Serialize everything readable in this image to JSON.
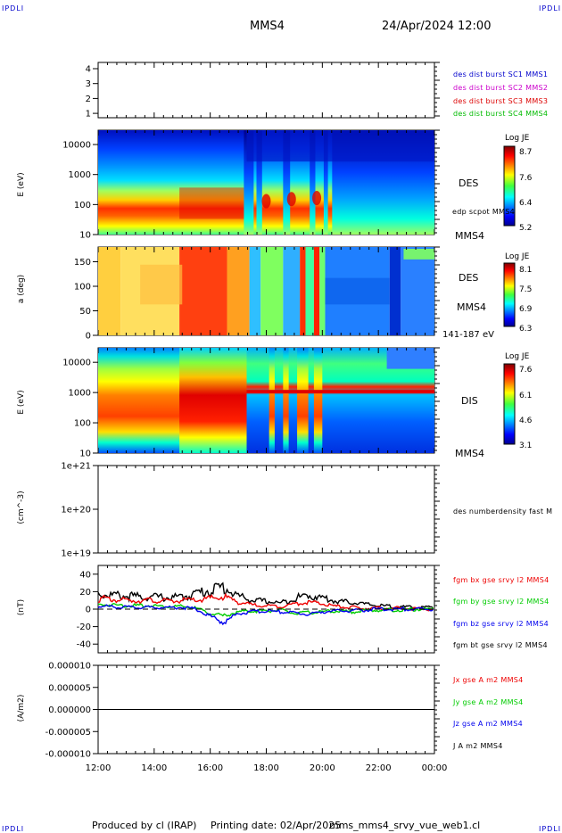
{
  "header": {
    "corner_label": "IPDLI",
    "title": "MMS4",
    "datetime": "24/Apr/2024 12:00"
  },
  "footer": {
    "produced_by": "Produced by cl (IRAP)",
    "printing_date": "Printing date: 02/Apr/2025",
    "filename": "mms_mms4_srvy_vue_web1.cl"
  },
  "time_axis": {
    "ticks": [
      "12:00",
      "14:00",
      "16:00",
      "18:00",
      "20:00",
      "22:00",
      "00:00"
    ]
  },
  "colors": {
    "mms1": "#0000cc",
    "mms2": "#cc00cc",
    "mms3": "#dd0000",
    "mms4": "#00bb00",
    "bx": "#ee0000",
    "by": "#00cc00",
    "bz": "#0000ee",
    "bt": "#000000"
  },
  "panels": {
    "burst": {
      "yticks": [
        "4",
        "3",
        "2",
        "1"
      ],
      "legend": [
        "des dist burst SC1 MMS1",
        "des dist burst SC2 MMS2",
        "des dist burst SC3 MMS3",
        "des dist burst SC4 MMS4"
      ]
    },
    "des_energy": {
      "ylabel": "E (eV)",
      "yticks": [
        "10000",
        "1000",
        "100",
        "10"
      ],
      "species": "DES",
      "overlay": "edp scpot MMS4",
      "sc": "MMS4",
      "cbar_title": "Log JE",
      "cbar_ticks": [
        "8.7",
        "7.6",
        "6.4",
        "5.2"
      ]
    },
    "pitch": {
      "ylabel": "a (deg)",
      "yticks": [
        "150",
        "100",
        "50",
        "0"
      ],
      "species": "DES",
      "sc": "MMS4",
      "range": "141-187 eV",
      "cbar_title": "Log JE",
      "cbar_ticks": [
        "8.1",
        "7.5",
        "6.9",
        "6.3"
      ]
    },
    "dis_energy": {
      "ylabel": "E (eV)",
      "yticks": [
        "10000",
        "1000",
        "100",
        "10"
      ],
      "species": "DIS",
      "sc": "MMS4",
      "cbar_title": "Log JE",
      "cbar_ticks": [
        "7.6",
        "6.1",
        "4.6",
        "3.1"
      ]
    },
    "density": {
      "ylabel": "(cm^-3)",
      "yticks": [
        "1e+21",
        "1e+20",
        "1e+19"
      ],
      "legend": "des numberdensity fast M"
    },
    "field": {
      "ylabel": "(nT)",
      "yticks": [
        "40",
        "20",
        "0",
        "-20",
        "-40"
      ],
      "legend": [
        "fgm bx gse srvy l2 MMS4",
        "fgm by gse srvy l2 MMS4",
        "fgm bz gse srvy l2 MMS4",
        "fgm bt gse srvy l2 MMS4"
      ]
    },
    "current": {
      "ylabel": "(A/m2)",
      "yticks": [
        "0.000010",
        "0.000005",
        "0.000000",
        "-0.000005",
        "-0.000010"
      ],
      "legend": [
        "Jx gse A m2 MMS4",
        "Jy gse A m2 MMS4",
        "Jz gse A m2 MMS4",
        "J A m2 MMS4"
      ]
    }
  },
  "chart_data": [
    {
      "type": "line",
      "name": "burst",
      "x_range": [
        "12:00",
        "00:00"
      ],
      "ylim": [
        0.5,
        4.5
      ],
      "series": []
    },
    {
      "type": "heatmap",
      "name": "des_energy_spectrogram",
      "yscale": "log",
      "ylim": [
        10,
        30000
      ],
      "clim": [
        5.2,
        8.7
      ]
    },
    {
      "type": "heatmap",
      "name": "des_pitch_angle",
      "ylim": [
        0,
        180
      ],
      "clim": [
        6.3,
        8.1
      ]
    },
    {
      "type": "heatmap",
      "name": "dis_energy_spectrogram",
      "yscale": "log",
      "ylim": [
        10,
        30000
      ],
      "clim": [
        3.1,
        7.6
      ]
    },
    {
      "type": "line",
      "name": "density",
      "yscale": "log",
      "ylim": [
        1e+19,
        1e+21
      ],
      "series": []
    },
    {
      "type": "line",
      "name": "magnetic_field",
      "ylim": [
        -50,
        50
      ],
      "x_hours": [
        0,
        0.5,
        1,
        1.5,
        2,
        2.5,
        3,
        3.5,
        4,
        4.5,
        5,
        5.5,
        6,
        6.5,
        7,
        7.5,
        8,
        8.5,
        9,
        9.5,
        10,
        10.5,
        11,
        11.5,
        12
      ],
      "series": [
        {
          "name": "bt",
          "values": [
            18,
            16,
            15,
            14,
            14,
            13,
            14,
            18,
            22,
            25,
            15,
            10,
            9,
            7,
            12,
            16,
            13,
            9,
            8,
            6,
            4,
            3,
            2,
            2,
            2
          ]
        },
        {
          "name": "bx",
          "values": [
            12,
            11,
            10,
            10,
            10,
            9,
            10,
            10,
            12,
            14,
            8,
            5,
            4,
            3,
            6,
            8,
            6,
            3,
            2,
            1,
            1,
            1,
            1,
            0,
            0
          ]
        },
        {
          "name": "by",
          "values": [
            5,
            5,
            4,
            4,
            4,
            3,
            3,
            1,
            -5,
            -8,
            -3,
            -2,
            -2,
            -1,
            -5,
            -4,
            -3,
            -2,
            -3,
            -2,
            -1,
            -1,
            -1,
            0,
            0
          ]
        },
        {
          "name": "bz",
          "values": [
            3,
            3,
            2,
            2,
            2,
            2,
            2,
            0,
            -8,
            -15,
            -5,
            -3,
            -2,
            -3,
            -4,
            -6,
            -3,
            -2,
            -2,
            -1,
            0,
            0,
            0,
            0,
            0
          ]
        }
      ]
    },
    {
      "type": "line",
      "name": "current_density",
      "ylim": [
        -1e-05,
        1e-05
      ],
      "x_hours": [
        0,
        2,
        4,
        6,
        8,
        10,
        12
      ],
      "series": [
        {
          "name": "Jx",
          "values": [
            0,
            0,
            0,
            0,
            0,
            0,
            0
          ]
        },
        {
          "name": "Jy",
          "values": [
            0,
            0,
            0,
            0,
            0,
            0,
            0
          ]
        },
        {
          "name": "Jz",
          "values": [
            0,
            0,
            0,
            0,
            0,
            0,
            0
          ]
        },
        {
          "name": "J",
          "values": [
            0,
            0,
            0,
            0,
            0,
            0,
            0
          ]
        }
      ]
    }
  ]
}
